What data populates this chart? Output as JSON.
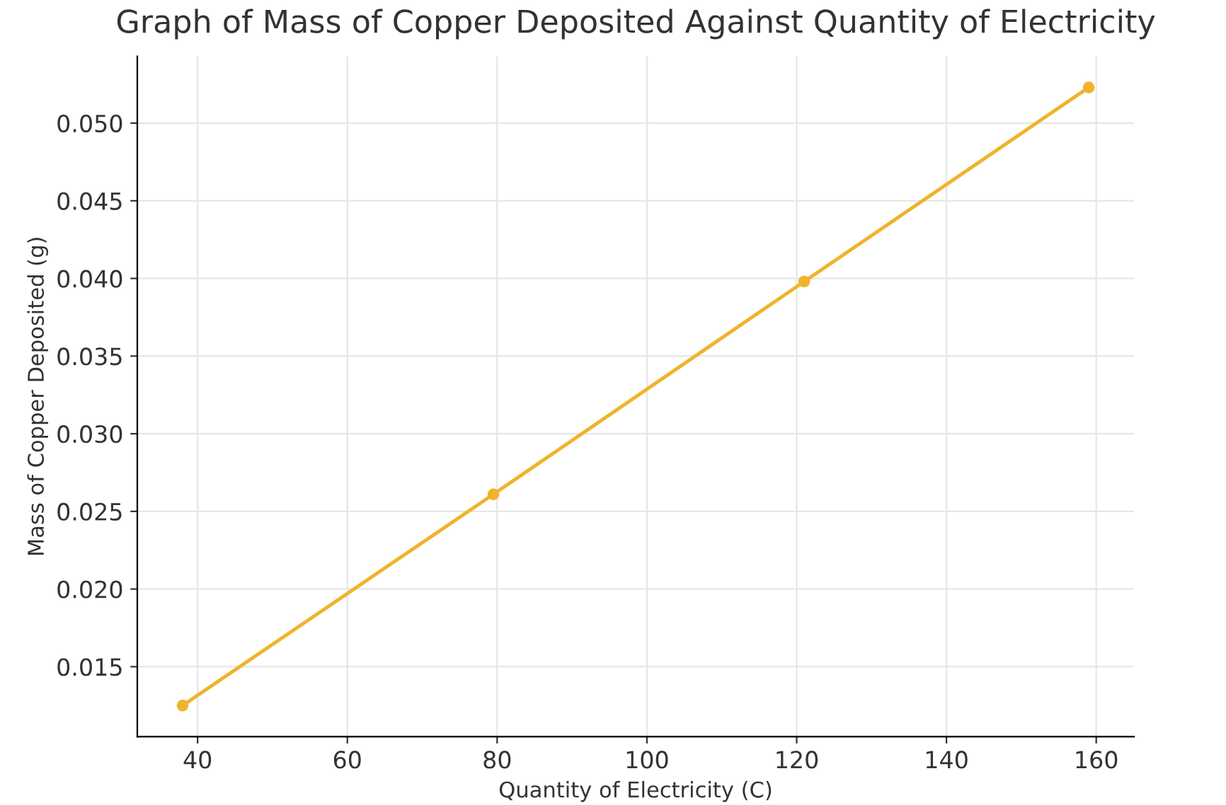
{
  "chart_data": {
    "type": "line",
    "title": "Graph of Mass of Copper Deposited Against Quantity of Electricity",
    "xlabel": "Quantity of Electricity (C)",
    "ylabel": "Mass of Copper Deposited (g)",
    "x": [
      38,
      79.5,
      121,
      159
    ],
    "series": [
      {
        "color": "#efb42c",
        "values": [
          0.0125,
          0.0261,
          0.0398,
          0.0523
        ]
      }
    ],
    "xlim": [
      31.95,
      165.05
    ],
    "ylim": [
      0.0105,
      0.0543
    ],
    "xticks": [
      40,
      60,
      80,
      100,
      120,
      140,
      160
    ],
    "yticks": [
      {
        "value": 0.015,
        "label": "0.015"
      },
      {
        "value": 0.02,
        "label": "0.020"
      },
      {
        "value": 0.025,
        "label": "0.025"
      },
      {
        "value": 0.03,
        "label": "0.030"
      },
      {
        "value": 0.035,
        "label": "0.035"
      },
      {
        "value": 0.04,
        "label": "0.040"
      },
      {
        "value": 0.045,
        "label": "0.045"
      },
      {
        "value": 0.05,
        "label": "0.050"
      }
    ],
    "grid": true,
    "marker": "circle",
    "line_style": "solid"
  }
}
